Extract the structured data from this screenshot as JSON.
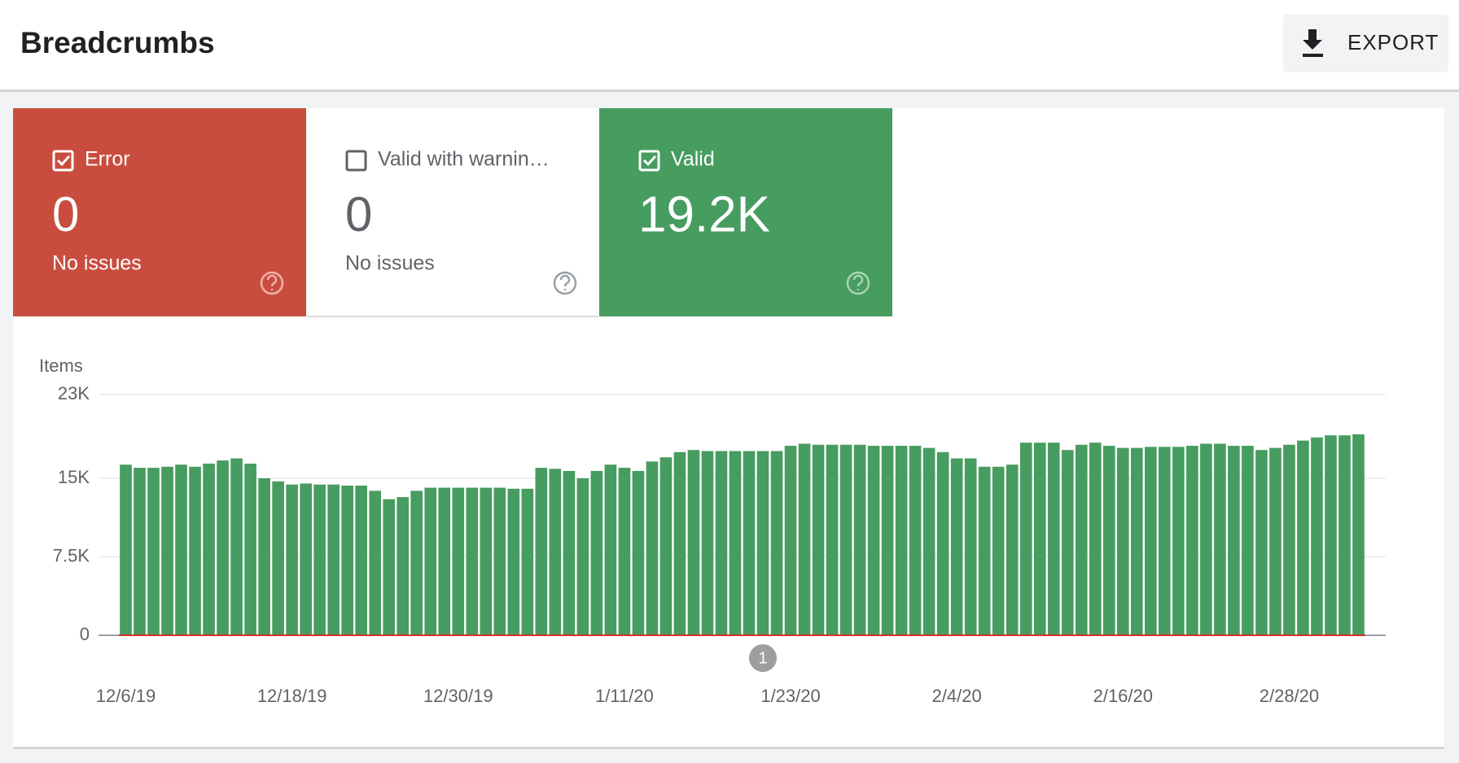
{
  "header": {
    "title": "Breadcrumbs",
    "export": "EXPORT"
  },
  "cards": [
    {
      "value": "0",
      "note": "No issues"
    },
    {
      "label": "Valid with warnin…",
      "value": "0",
      "note": "No issues"
    },
    {
      "value": "19.2K"
    }
  ],
  "chart_data": {
    "type": "bar",
    "y_label": "Items",
    "categories": [
      "12/6/19",
      null,
      null,
      null,
      null,
      null,
      null,
      null,
      null,
      null,
      null,
      null,
      "12/18/19",
      null,
      null,
      null,
      null,
      null,
      null,
      null,
      null,
      null,
      null,
      null,
      "12/30/19",
      null,
      null,
      null,
      null,
      null,
      null,
      null,
      null,
      null,
      null,
      null,
      "1/11/20",
      null,
      null,
      null,
      null,
      null,
      null,
      null,
      null,
      null,
      null,
      null,
      "1/23/20",
      null,
      null,
      null,
      null,
      null,
      null,
      null,
      null,
      null,
      null,
      null,
      "2/4/20",
      null,
      null,
      null,
      null,
      null,
      null,
      null,
      null,
      null,
      null,
      null,
      "2/16/20",
      null,
      null,
      null,
      null,
      null,
      null,
      null,
      null,
      null,
      null,
      null,
      "2/28/20",
      null,
      null,
      null,
      null,
      null
    ],
    "series": [
      {
        "name": "Error",
        "color": "#d93025",
        "values": [
          0,
          0,
          0,
          0,
          0,
          0,
          0,
          0,
          0,
          0,
          0,
          0,
          0,
          0,
          0,
          0,
          0,
          0,
          0,
          0,
          0,
          0,
          0,
          0,
          0,
          0,
          0,
          0,
          0,
          0,
          0,
          0,
          0,
          0,
          0,
          0,
          0,
          0,
          0,
          0,
          0,
          0,
          0,
          0,
          0,
          0,
          0,
          0,
          0,
          0,
          0,
          0,
          0,
          0,
          0,
          0,
          0,
          0,
          0,
          0,
          0,
          0,
          0,
          0,
          0,
          0,
          0,
          0,
          0,
          0,
          0,
          0,
          0,
          0,
          0,
          0,
          0,
          0,
          0,
          0,
          0,
          0,
          0,
          0,
          0,
          0,
          0,
          0,
          0,
          0
        ]
      },
      {
        "name": "Valid",
        "color": "#479c5f",
        "values": [
          16300,
          16000,
          16000,
          16100,
          16300,
          16100,
          16400,
          16700,
          16900,
          16400,
          15000,
          14700,
          14400,
          14500,
          14400,
          14400,
          14300,
          14300,
          13800,
          13000,
          13200,
          13800,
          14100,
          14100,
          14100,
          14100,
          14100,
          14100,
          14000,
          14000,
          16000,
          15900,
          15700,
          15000,
          15700,
          16300,
          16000,
          15700,
          16600,
          17000,
          17500,
          17700,
          17600,
          17600,
          17600,
          17600,
          17600,
          17600,
          18100,
          18300,
          18200,
          18200,
          18200,
          18200,
          18100,
          18100,
          18100,
          18100,
          17900,
          17500,
          16900,
          16900,
          16100,
          16100,
          16300,
          18400,
          18400,
          18400,
          17700,
          18200,
          18400,
          18100,
          17900,
          17900,
          18000,
          18000,
          18000,
          18100,
          18300,
          18300,
          18100,
          18100,
          17700,
          17900,
          18200,
          18600,
          18900,
          19100,
          19100,
          19200
        ]
      }
    ],
    "ylim": [
      0,
      23000
    ],
    "yticks": [
      0,
      {
        "value": 7500,
        "label": "7.5K"
      },
      {
        "value": 15000,
        "label": "15K"
      },
      {
        "value": 23000,
        "label": "23K"
      }
    ],
    "grid": true,
    "annotations": [
      "1"
    ]
  }
}
